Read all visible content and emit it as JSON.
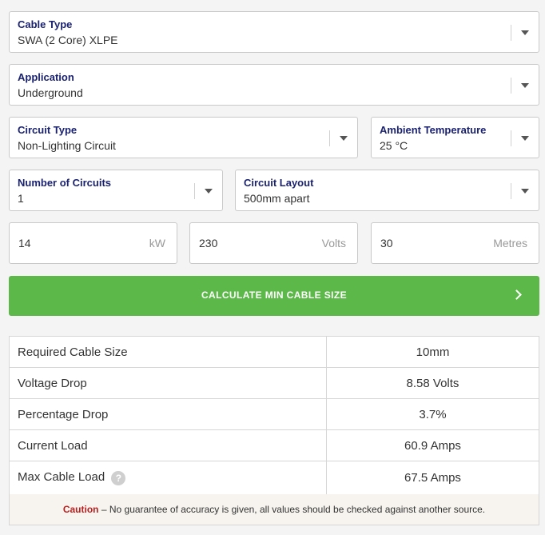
{
  "selects": {
    "cable_type": {
      "label": "Cable Type",
      "value": "SWA (2 Core) XLPE"
    },
    "application": {
      "label": "Application",
      "value": "Underground"
    },
    "circuit_type": {
      "label": "Circuit Type",
      "value": "Non-Lighting Circuit"
    },
    "ambient_temperature": {
      "label": "Ambient Temperature",
      "value": "25 °C"
    },
    "number_of_circuits": {
      "label": "Number of Circuits",
      "value": "1"
    },
    "circuit_layout": {
      "label": "Circuit Layout",
      "value": "500mm apart"
    }
  },
  "inputs": {
    "power": {
      "value": "14",
      "unit": "kW"
    },
    "voltage": {
      "value": "230",
      "unit": "Volts"
    },
    "length": {
      "value": "30",
      "unit": "Metres"
    }
  },
  "calculate_button": {
    "label": "CALCULATE MIN CABLE SIZE"
  },
  "results": [
    {
      "label": "Required Cable Size",
      "value": "10mm"
    },
    {
      "label": "Voltage Drop",
      "value": "8.58 Volts"
    },
    {
      "label": "Percentage Drop",
      "value": "3.7%"
    },
    {
      "label": "Current Load",
      "value": "60.9 Amps"
    },
    {
      "label": "Max Cable Load",
      "value": "67.5 Amps"
    }
  ],
  "help_icon_glyph": "?",
  "caution": {
    "label": "Caution",
    "text": " – No guarantee of accuracy is given, all values should be checked against another source."
  },
  "colors": {
    "accent_green": "#5cb848",
    "label_navy": "#1a2270",
    "caution_red": "#b81f1f"
  }
}
